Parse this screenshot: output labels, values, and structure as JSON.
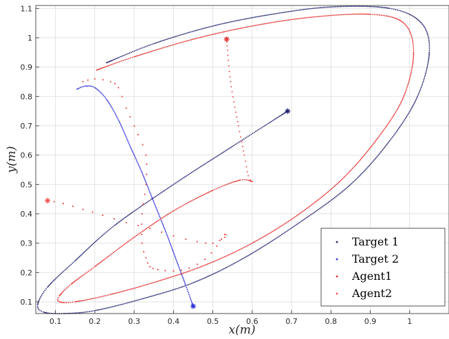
{
  "chart_data": {
    "type": "scatter",
    "xlabel": "x(m)",
    "ylabel": "y(m)",
    "xlim": [
      0.05,
      1.1
    ],
    "ylim": [
      0.06,
      1.11
    ],
    "xticks": [
      "0.1",
      "0.2",
      "0.3",
      "0.4",
      "0.5",
      "0.6",
      "0.7",
      "0.8",
      "0.9",
      "1"
    ],
    "yticks": [
      "0.1",
      "0.2",
      "0.3",
      "0.4",
      "0.5",
      "0.6",
      "0.7",
      "0.8",
      "0.9",
      "1",
      "1.1"
    ],
    "xtick_values": [
      0.1,
      0.2,
      0.3,
      0.4,
      0.5,
      0.6,
      0.7,
      0.8,
      0.9,
      1.0
    ],
    "ytick_values": [
      0.1,
      0.2,
      0.3,
      0.4,
      0.5,
      0.6,
      0.7,
      0.8,
      0.9,
      1.0,
      1.1
    ],
    "grid": true,
    "legend_position": "bottom-right",
    "series": [
      {
        "name": "Target 1",
        "color": "#1f1f6e",
        "marker": "dot",
        "dense": true,
        "points": [
          [
            0.23,
            0.915
          ],
          [
            0.35,
            0.98
          ],
          [
            0.5,
            1.04
          ],
          [
            0.65,
            1.08
          ],
          [
            0.8,
            1.105
          ],
          [
            0.95,
            1.1
          ],
          [
            1.03,
            1.05
          ],
          [
            1.05,
            0.95
          ],
          [
            1.02,
            0.8
          ],
          [
            0.95,
            0.65
          ],
          [
            0.85,
            0.5
          ],
          [
            0.72,
            0.37
          ],
          [
            0.58,
            0.25
          ],
          [
            0.45,
            0.165
          ],
          [
            0.32,
            0.11
          ],
          [
            0.2,
            0.07
          ],
          [
            0.12,
            0.06
          ],
          [
            0.07,
            0.065
          ],
          [
            0.055,
            0.09
          ],
          [
            0.08,
            0.15
          ],
          [
            0.15,
            0.24
          ],
          [
            0.25,
            0.36
          ],
          [
            0.4,
            0.5
          ],
          [
            0.55,
            0.63
          ],
          [
            0.69,
            0.75
          ]
        ],
        "end_marker": [
          0.69,
          0.75
        ]
      },
      {
        "name": "Target 2",
        "color": "#2e2ed6",
        "marker": "dot",
        "dense": true,
        "points": [
          [
            0.155,
            0.825
          ],
          [
            0.175,
            0.835
          ],
          [
            0.2,
            0.83
          ],
          [
            0.23,
            0.79
          ],
          [
            0.26,
            0.72
          ],
          [
            0.29,
            0.63
          ],
          [
            0.32,
            0.54
          ],
          [
            0.35,
            0.44
          ],
          [
            0.38,
            0.34
          ],
          [
            0.405,
            0.25
          ],
          [
            0.43,
            0.16
          ],
          [
            0.45,
            0.085
          ]
        ],
        "end_marker": [
          0.45,
          0.085
        ]
      },
      {
        "name": "Agent1",
        "color": "#e22a2a",
        "marker": "dot",
        "dense": true,
        "points": [
          [
            0.205,
            0.89
          ],
          [
            0.3,
            0.935
          ],
          [
            0.45,
            0.995
          ],
          [
            0.6,
            1.04
          ],
          [
            0.75,
            1.07
          ],
          [
            0.9,
            1.08
          ],
          [
            0.985,
            1.05
          ],
          [
            1.01,
            0.95
          ],
          [
            0.985,
            0.8
          ],
          [
            0.92,
            0.66
          ],
          [
            0.83,
            0.52
          ],
          [
            0.72,
            0.4
          ],
          [
            0.6,
            0.3
          ],
          [
            0.48,
            0.225
          ],
          [
            0.36,
            0.17
          ],
          [
            0.24,
            0.125
          ],
          [
            0.15,
            0.1
          ],
          [
            0.11,
            0.1
          ],
          [
            0.11,
            0.12
          ],
          [
            0.14,
            0.16
          ],
          [
            0.2,
            0.22
          ],
          [
            0.3,
            0.32
          ],
          [
            0.4,
            0.41
          ],
          [
            0.5,
            0.48
          ],
          [
            0.57,
            0.515
          ],
          [
            0.6,
            0.51
          ]
        ],
        "end_marker": [
          0.535,
          0.995
        ]
      },
      {
        "name": "Agent2",
        "color": "#ee5050",
        "marker": "dot",
        "dense": false,
        "points": [
          [
            0.08,
            0.445
          ],
          [
            0.12,
            0.435
          ],
          [
            0.17,
            0.415
          ],
          [
            0.22,
            0.395
          ],
          [
            0.28,
            0.37
          ],
          [
            0.34,
            0.35
          ],
          [
            0.4,
            0.325
          ],
          [
            0.46,
            0.305
          ],
          [
            0.5,
            0.3
          ],
          [
            0.53,
            0.32
          ],
          [
            0.53,
            0.33
          ],
          [
            0.51,
            0.29
          ],
          [
            0.48,
            0.245
          ],
          [
            0.44,
            0.215
          ],
          [
            0.4,
            0.205
          ],
          [
            0.36,
            0.21
          ],
          [
            0.34,
            0.22
          ],
          [
            0.33,
            0.25
          ],
          [
            0.32,
            0.3
          ],
          [
            0.32,
            0.4
          ],
          [
            0.33,
            0.5
          ],
          [
            0.33,
            0.6
          ],
          [
            0.31,
            0.67
          ],
          [
            0.28,
            0.76
          ],
          [
            0.26,
            0.83
          ],
          [
            0.24,
            0.85
          ],
          [
            0.2,
            0.86
          ],
          [
            0.17,
            0.85
          ]
        ],
        "end_marker": [
          0.08,
          0.445
        ],
        "connector": [
          [
            0.535,
            0.995
          ],
          [
            0.545,
            0.85
          ],
          [
            0.565,
            0.7
          ],
          [
            0.58,
            0.6
          ],
          [
            0.59,
            0.53
          ],
          [
            0.6,
            0.51
          ]
        ]
      }
    ]
  }
}
